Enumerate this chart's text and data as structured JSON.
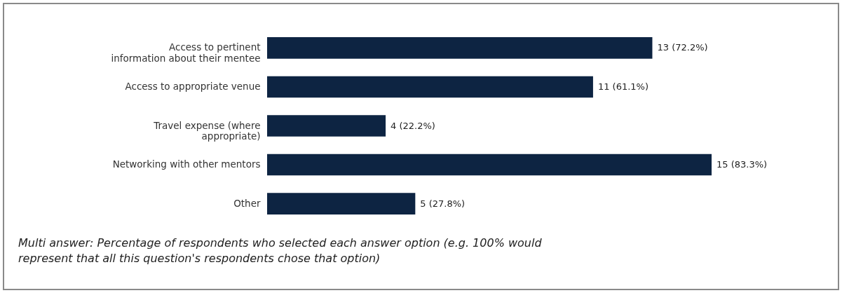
{
  "chart_data": {
    "type": "bar",
    "orientation": "horizontal",
    "categories": [
      "Access to pertinent information about their mentee",
      "Access to appropriate venue",
      "Travel expense (where appropriate)",
      "Networking with other mentors",
      "Other"
    ],
    "values": [
      13,
      11,
      4,
      15,
      5
    ],
    "value_labels": [
      "13 (72.2%)",
      "11 (61.1%)",
      "4 (22.2%)",
      "15 (83.3%)",
      "5 (27.8%)"
    ],
    "color": "#0d2442",
    "grid": false,
    "annotations": [
      "Multi answer: Percentage of respondents who selected each answer option (e.g. 100% would represent that all this question's respondents chose that option)"
    ]
  }
}
